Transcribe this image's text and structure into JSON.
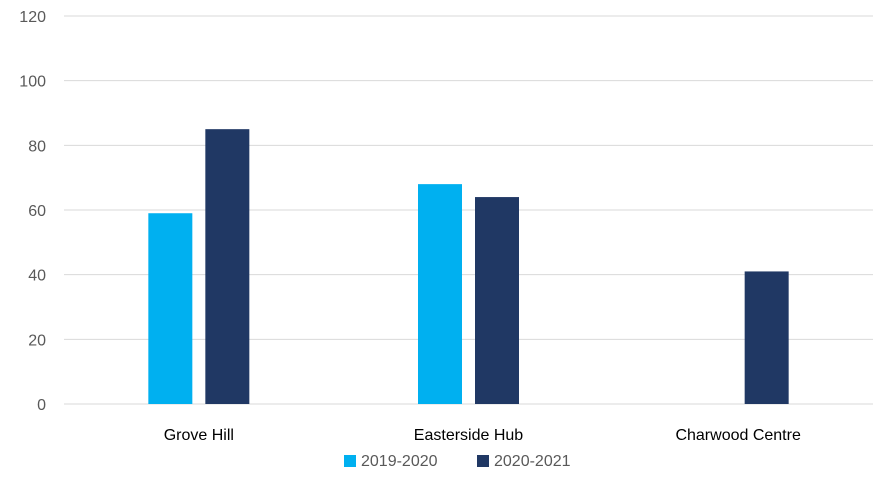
{
  "chart_data": {
    "type": "bar",
    "title": "",
    "xlabel": "",
    "ylabel": "",
    "categories": [
      "Grove Hill",
      "Easterside Hub",
      "Charwood Centre"
    ],
    "series": [
      {
        "name": "2019-2020",
        "color": "#00b0f0",
        "values": [
          59,
          68,
          null
        ]
      },
      {
        "name": "2020-2021",
        "color": "#203864",
        "values": [
          85,
          64,
          41
        ]
      }
    ],
    "ylim": [
      0,
      120
    ],
    "y_ticks": [
      "0",
      "20",
      "40",
      "60",
      "80",
      "100",
      "120"
    ],
    "grid": true,
    "legend_position": "bottom"
  }
}
